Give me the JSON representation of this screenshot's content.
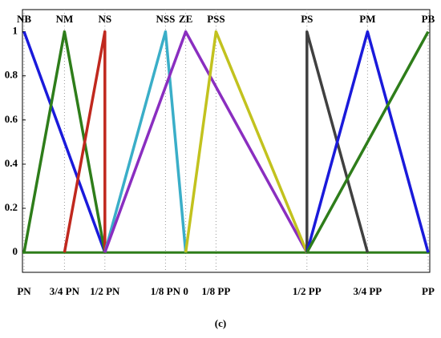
{
  "chart_data": {
    "type": "line",
    "caption": "(c)",
    "xlim": [
      -1.01,
      1.51
    ],
    "ylim": [
      -0.09,
      1.1
    ],
    "xticks": [
      {
        "value": -1,
        "label": "PN"
      },
      {
        "value": -0.75,
        "label": "3/4 PN"
      },
      {
        "value": -0.5,
        "label": "1/2 PN"
      },
      {
        "value": -0.125,
        "label": "1/8 PN"
      },
      0,
      {
        "value": 0.1875,
        "label": "1/8 PP"
      },
      {
        "value": 0.75,
        "label": "1/2 PP"
      },
      {
        "value": 1.125,
        "label": "3/4 PP"
      },
      {
        "value": 1.5,
        "label": "PP"
      }
    ],
    "yticks": [
      0,
      0.2,
      0.4,
      0.6,
      0.8,
      1
    ],
    "grid": true,
    "series": [
      {
        "name": "NB",
        "color": "#1a1adb",
        "x": [
          -1,
          -0.5
        ],
        "values": [
          1,
          0
        ]
      },
      {
        "name": "NM",
        "color": "#2e7d1a",
        "x": [
          -1,
          -0.75,
          -0.5
        ],
        "values": [
          0,
          1,
          0
        ]
      },
      {
        "name": "NS",
        "color": "#c0281e",
        "x": [
          -0.75,
          -0.5,
          -0.5
        ],
        "values": [
          0,
          1,
          0
        ]
      },
      {
        "name": "NSS",
        "color": "#3aaec8",
        "x": [
          -0.5,
          -0.125,
          0
        ],
        "values": [
          0,
          1,
          0
        ]
      },
      {
        "name": "ZE",
        "color": "#8a2ec0",
        "x": [
          -0.5,
          0,
          0.75
        ],
        "values": [
          0,
          1,
          0
        ]
      },
      {
        "name": "PSS",
        "color": "#c2c21e",
        "x": [
          0,
          0.1875,
          0.75
        ],
        "values": [
          0,
          1,
          0
        ]
      },
      {
        "name": "PS",
        "color": "#404040",
        "x": [
          0.75,
          0.75,
          1.125
        ],
        "values": [
          0,
          1,
          0
        ]
      },
      {
        "name": "PM",
        "color": "#1a1adb",
        "x": [
          0.75,
          1.125,
          1.5
        ],
        "values": [
          0,
          1,
          0
        ]
      },
      {
        "name": "PB",
        "color": "#2e7d1a",
        "x": [
          0.75,
          1.5
        ],
        "values": [
          0,
          1
        ]
      }
    ]
  }
}
